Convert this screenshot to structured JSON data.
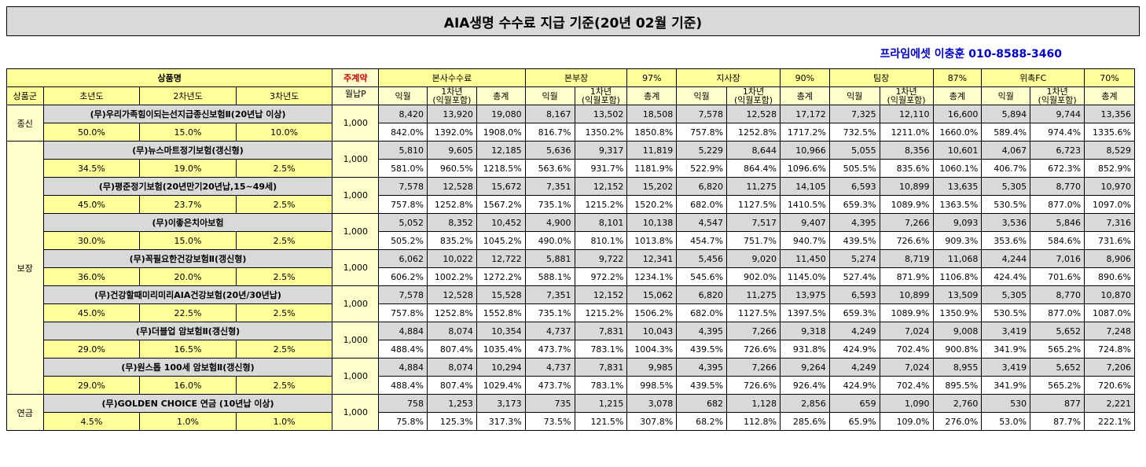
{
  "title": "AIA생명 수수료 지급 기준(20년 02월 기준)",
  "contact": "프라임에셋 이충훈 010-8588-3460",
  "header": {
    "product_name": "상품명",
    "contract": "주계약",
    "monthly_premium": "월납P",
    "group": "상품군",
    "years": [
      "초년도",
      "2차년도",
      "3차년도"
    ],
    "sections": [
      {
        "name": "본사수수료",
        "pct": ""
      },
      {
        "name": "본부장",
        "pct": "97%"
      },
      {
        "name": "지사장",
        "pct": "90%"
      },
      {
        "name": "팀장",
        "pct": "87%"
      },
      {
        "name": "위촉FC",
        "pct": "70%"
      }
    ],
    "sub": {
      "m": "익월",
      "y1a": "1차년",
      "y1b": "(익월포함)",
      "total": "총계"
    }
  },
  "groups": [
    {
      "name": "종신",
      "rows": 1
    },
    {
      "name": "보장",
      "rows": 7
    },
    {
      "name": "연금",
      "rows": 1
    }
  ],
  "products": [
    {
      "name": "(무)우리가족힘이되는선지급종신보험Ⅱ(20년납 이상)",
      "r1": "50.0%",
      "r2": "15.0%",
      "r3": "10.0%",
      "premium": "1,000",
      "amt": [
        "8,420",
        "13,920",
        "19,080",
        "8,167",
        "13,502",
        "18,508",
        "7,578",
        "12,528",
        "17,172",
        "7,325",
        "12,110",
        "16,600",
        "5,894",
        "9,744",
        "13,356"
      ],
      "pct": [
        "842.0%",
        "1392.0%",
        "1908.0%",
        "816.7%",
        "1350.2%",
        "1850.8%",
        "757.8%",
        "1252.8%",
        "1717.2%",
        "732.5%",
        "1211.0%",
        "1660.0%",
        "589.4%",
        "974.4%",
        "1335.6%"
      ]
    },
    {
      "name": "(무)뉴스마트정기보험(갱신형)",
      "r1": "34.5%",
      "r2": "19.0%",
      "r3": "2.5%",
      "premium": "1,000",
      "amt": [
        "5,810",
        "9,605",
        "12,185",
        "5,636",
        "9,317",
        "11,819",
        "5,229",
        "8,644",
        "10,966",
        "5,055",
        "8,356",
        "10,601",
        "4,067",
        "6,723",
        "8,529"
      ],
      "pct": [
        "581.0%",
        "960.5%",
        "1218.5%",
        "563.6%",
        "931.7%",
        "1181.9%",
        "522.9%",
        "864.4%",
        "1096.6%",
        "505.5%",
        "835.6%",
        "1060.1%",
        "406.7%",
        "672.3%",
        "852.9%"
      ]
    },
    {
      "name": "(무)평준정기보험(20년만기20년납,15~49세)",
      "r1": "45.0%",
      "r2": "23.7%",
      "r3": "2.5%",
      "premium": "1,000",
      "amt": [
        "7,578",
        "12,528",
        "15,672",
        "7,351",
        "12,152",
        "15,202",
        "6,820",
        "11,275",
        "14,105",
        "6,593",
        "10,899",
        "13,635",
        "5,305",
        "8,770",
        "10,970"
      ],
      "pct": [
        "757.8%",
        "1252.8%",
        "1567.2%",
        "735.1%",
        "1215.2%",
        "1520.2%",
        "682.0%",
        "1127.5%",
        "1410.5%",
        "659.3%",
        "1089.9%",
        "1363.5%",
        "530.5%",
        "877.0%",
        "1097.0%"
      ]
    },
    {
      "name": "(무)이좋은치아보험",
      "r1": "30.0%",
      "r2": "15.0%",
      "r3": "2.5%",
      "premium": "1,000",
      "amt": [
        "5,052",
        "8,352",
        "10,452",
        "4,900",
        "8,101",
        "10,138",
        "4,547",
        "7,517",
        "9,407",
        "4,395",
        "7,266",
        "9,093",
        "3,536",
        "5,846",
        "7,316"
      ],
      "pct": [
        "505.2%",
        "835.2%",
        "1045.2%",
        "490.0%",
        "810.1%",
        "1013.8%",
        "454.7%",
        "751.7%",
        "940.7%",
        "439.5%",
        "726.6%",
        "909.3%",
        "353.6%",
        "584.6%",
        "731.6%"
      ]
    },
    {
      "name": "(무)꼭필요한건강보험Ⅱ(갱신형)",
      "r1": "36.0%",
      "r2": "20.0%",
      "r3": "2.5%",
      "premium": "1,000",
      "amt": [
        "6,062",
        "10,022",
        "12,722",
        "5,881",
        "9,722",
        "12,341",
        "5,456",
        "9,020",
        "11,450",
        "5,274",
        "8,719",
        "11,068",
        "4,244",
        "7,016",
        "8,906"
      ],
      "pct": [
        "606.2%",
        "1002.2%",
        "1272.2%",
        "588.1%",
        "972.2%",
        "1234.1%",
        "545.6%",
        "902.0%",
        "1145.0%",
        "527.4%",
        "871.9%",
        "1106.8%",
        "424.4%",
        "701.6%",
        "890.6%"
      ]
    },
    {
      "name": "(무)건강할때미리미리AIA건강보험(20년/30년납)",
      "r1": "45.0%",
      "r2": "22.5%",
      "r3": "2.5%",
      "premium": "1,000",
      "amt": [
        "7,578",
        "12,528",
        "15,528",
        "7,351",
        "12,152",
        "15,062",
        "6,820",
        "11,275",
        "13,975",
        "6,593",
        "10,899",
        "13,509",
        "5,305",
        "8,770",
        "10,870"
      ],
      "pct": [
        "757.8%",
        "1252.8%",
        "1552.8%",
        "735.1%",
        "1215.2%",
        "1506.2%",
        "682.0%",
        "1127.5%",
        "1397.5%",
        "659.3%",
        "1089.9%",
        "1350.9%",
        "530.5%",
        "877.0%",
        "1087.0%"
      ]
    },
    {
      "name": "(무)더블업 암보험Ⅱ(갱신형)",
      "r1": "29.0%",
      "r2": "16.5%",
      "r3": "2.5%",
      "premium": "1,000",
      "amt": [
        "4,884",
        "8,074",
        "10,354",
        "4,737",
        "7,831",
        "10,043",
        "4,395",
        "7,266",
        "9,318",
        "4,249",
        "7,024",
        "9,008",
        "3,419",
        "5,652",
        "7,248"
      ],
      "pct": [
        "488.4%",
        "807.4%",
        "1035.4%",
        "473.7%",
        "783.1%",
        "1004.3%",
        "439.5%",
        "726.6%",
        "931.8%",
        "424.9%",
        "702.4%",
        "900.8%",
        "341.9%",
        "565.2%",
        "724.8%"
      ]
    },
    {
      "name": "(무)원스톱 100세 암보험Ⅱ(갱신형)",
      "r1": "29.0%",
      "r2": "16.0%",
      "r3": "2.5%",
      "premium": "1,000",
      "amt": [
        "4,884",
        "8,074",
        "10,294",
        "4,737",
        "7,831",
        "9,985",
        "4,395",
        "7,266",
        "9,264",
        "4,249",
        "7,024",
        "8,955",
        "3,419",
        "5,652",
        "7,206"
      ],
      "pct": [
        "488.4%",
        "807.4%",
        "1029.4%",
        "473.7%",
        "783.1%",
        "998.5%",
        "439.5%",
        "726.6%",
        "926.4%",
        "424.9%",
        "702.4%",
        "895.5%",
        "341.9%",
        "565.2%",
        "720.6%"
      ]
    },
    {
      "name": "(무)GOLDEN CHOICE 연금 (10년납 이상)",
      "r1": "4.5%",
      "r2": "1.0%",
      "r3": "1.0%",
      "premium": "1,000",
      "amt": [
        "758",
        "1,253",
        "3,173",
        "735",
        "1,215",
        "3,078",
        "682",
        "1,128",
        "2,856",
        "659",
        "1,090",
        "2,760",
        "530",
        "877",
        "2,221"
      ],
      "pct": [
        "75.8%",
        "125.3%",
        "317.3%",
        "73.5%",
        "121.5%",
        "307.8%",
        "68.2%",
        "112.8%",
        "285.6%",
        "65.9%",
        "109.0%",
        "276.0%",
        "53.0%",
        "87.7%",
        "222.1%"
      ]
    }
  ]
}
